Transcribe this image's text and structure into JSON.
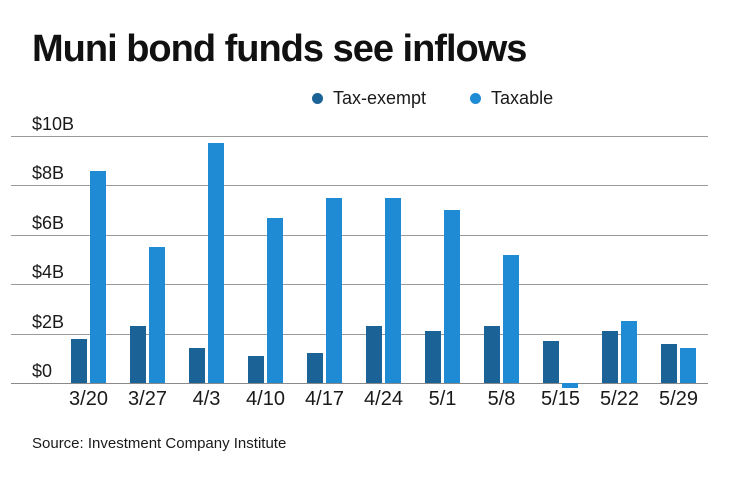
{
  "chart": {
    "title": "Muni bond funds see inflows",
    "source": "Source: Investment Company Institute"
  },
  "chart_data": {
    "type": "bar",
    "title": "Muni bond funds see inflows",
    "categories": [
      "3/20",
      "3/27",
      "4/3",
      "4/10",
      "4/17",
      "4/24",
      "5/1",
      "5/8",
      "5/15",
      "5/22",
      "5/29"
    ],
    "series": [
      {
        "name": "Tax-exempt",
        "color": "#1b6397",
        "values": [
          1.8,
          2.3,
          1.4,
          1.1,
          1.2,
          2.3,
          2.1,
          2.3,
          1.7,
          2.1,
          1.6
        ]
      },
      {
        "name": "Taxable",
        "color": "#1e8bd4",
        "values": [
          8.6,
          5.5,
          9.7,
          6.7,
          7.5,
          7.5,
          7.0,
          5.2,
          -0.2,
          2.5,
          1.4
        ]
      }
    ],
    "y_ticks": [
      "$10B",
      "$8B",
      "$6B",
      "$4B",
      "$2B",
      "$0"
    ],
    "ylim": [
      0,
      10
    ],
    "unit": "billions of dollars",
    "grid": "horizontal",
    "legend_position": "top-center",
    "source": "Source: Investment Company Institute"
  }
}
